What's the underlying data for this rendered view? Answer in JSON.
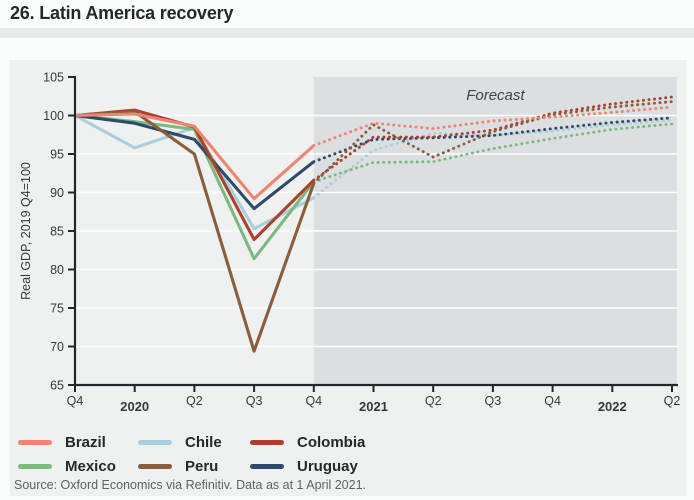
{
  "header": {
    "title": "26. Latin America recovery"
  },
  "source": {
    "text": "Source: Oxford Economics via Refinitiv. Data as at 1 April 2021."
  },
  "colors": {
    "page_bg": "#fbfcfc",
    "divider_band": "#e9ebeb",
    "panel_bg": "#eff1f1",
    "forecast_band": "#dcdfe1",
    "gridline": "#ffffff",
    "axis": "#23262a",
    "tick_text": "#35393d",
    "forecast_text": "#3f444a"
  },
  "chart_data": {
    "type": "line",
    "title": "26. Latin America recovery",
    "ylabel": "Real GDP, 2019 Q4=100",
    "ylim": [
      65,
      105
    ],
    "ytick_step": 5,
    "ytick_labels": [
      "65",
      "70",
      "75",
      "80",
      "85",
      "90",
      "95",
      "100",
      "105"
    ],
    "x_labels": [
      "Q4",
      "2020",
      "Q2",
      "Q3",
      "Q4",
      "2021",
      "Q2",
      "Q3",
      "Q4",
      "2022",
      "Q2"
    ],
    "year_label_indices": [
      1,
      5,
      9
    ],
    "grid": "horizontal-white-gridlines",
    "legend_position": "bottom-left",
    "forecast": {
      "label": "Forecast",
      "start_index": 4
    },
    "solid_until_index": 4,
    "draw_order": [
      "Chile",
      "Mexico",
      "Uruguay",
      "Colombia",
      "Peru",
      "Brazil"
    ],
    "series": [
      {
        "name": "Brazil",
        "color": "#EC8670",
        "values": [
          100,
          100.2,
          98.6,
          89.2,
          96.1,
          99.0,
          98.3,
          99.3,
          99.8,
          100.4,
          101.1
        ]
      },
      {
        "name": "Chile",
        "color": "#A9CFDC",
        "values": [
          100,
          95.8,
          98.4,
          85.3,
          89.3,
          95.5,
          97.7,
          97.4,
          98.0,
          98.8,
          99.4
        ]
      },
      {
        "name": "Colombia",
        "color": "#AE412E",
        "values": [
          100,
          100.7,
          98.5,
          83.9,
          91.6,
          97.2,
          97.2,
          98.1,
          100.3,
          101.5,
          102.4
        ]
      },
      {
        "name": "Mexico",
        "color": "#7CB97E",
        "values": [
          100,
          99.2,
          98.2,
          81.4,
          91.4,
          93.9,
          94.0,
          95.7,
          97.0,
          98.2,
          98.9
        ]
      },
      {
        "name": "Peru",
        "color": "#8A5D3B",
        "values": [
          100,
          100.5,
          95.0,
          69.4,
          91.2,
          98.8,
          94.6,
          97.9,
          100.1,
          101.1,
          101.8
        ]
      },
      {
        "name": "Uruguay",
        "color": "#2D4A68",
        "values": [
          100,
          99.0,
          96.9,
          87.9,
          94.0,
          96.9,
          97.1,
          97.4,
          98.3,
          99.1,
          99.7
        ]
      }
    ]
  },
  "legend": {
    "items": [
      {
        "label": "Brazil",
        "color": "#EC8670"
      },
      {
        "label": "Chile",
        "color": "#A9CFDC"
      },
      {
        "label": "Colombia",
        "color": "#AE412E"
      },
      {
        "label": "Mexico",
        "color": "#7CB97E"
      },
      {
        "label": "Peru",
        "color": "#8A5D3B"
      },
      {
        "label": "Uruguay",
        "color": "#2D4A68"
      }
    ]
  }
}
